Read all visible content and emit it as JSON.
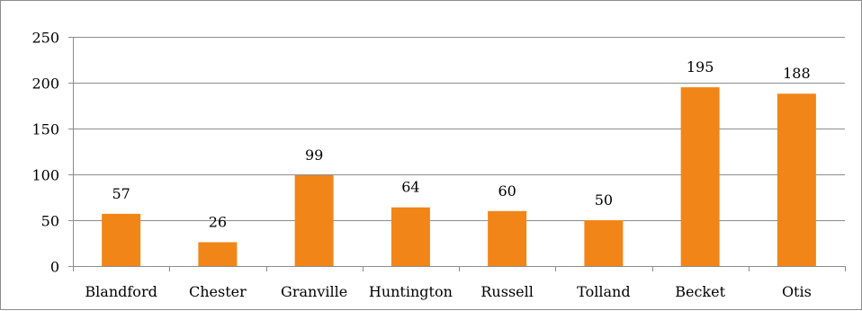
{
  "chart_data": {
    "type": "bar",
    "title": "",
    "xlabel": "",
    "ylabel": "",
    "categories": [
      "Blandford",
      "Chester",
      "Granville",
      "Huntington",
      "Russell",
      "Tolland",
      "Becket",
      "Otis"
    ],
    "values": [
      57,
      26,
      99,
      64,
      60,
      50,
      195,
      188
    ],
    "ylim": [
      0,
      250
    ],
    "yticks": [
      0,
      50,
      100,
      150,
      200,
      250
    ],
    "ytick_labels": [
      "0",
      "50",
      "100",
      "150",
      "200",
      "250"
    ],
    "data_labels": [
      "57",
      "26",
      "99",
      "64",
      "60",
      "50",
      "195",
      "188"
    ],
    "grid": true,
    "legend": "none",
    "bar_color": "#F28518"
  }
}
